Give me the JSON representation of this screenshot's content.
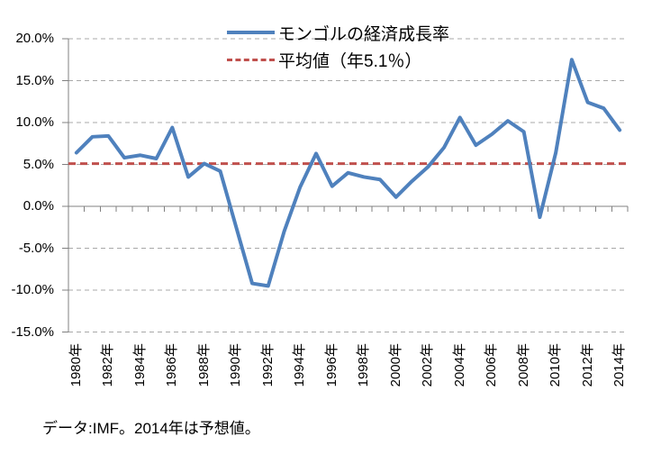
{
  "legend": {
    "items": [
      {
        "label": "モンゴルの経済成長率",
        "color": "#4F81BD",
        "style": "solid"
      },
      {
        "label": "平均値（年5.1％）",
        "color": "#C0504D",
        "style": "dashed"
      }
    ]
  },
  "footer": {
    "source_note": "データ:IMF。2014年は予想値。"
  },
  "chart_data": {
    "type": "line",
    "title": "",
    "xlabel": "",
    "ylabel": "",
    "x_categories": [
      "1980年",
      "1981年",
      "1982年",
      "1983年",
      "1984年",
      "1985年",
      "1986年",
      "1987年",
      "1988年",
      "1989年",
      "1990年",
      "1991年",
      "1992年",
      "1993年",
      "1994年",
      "1995年",
      "1996年",
      "1997年",
      "1998年",
      "1999年",
      "2000年",
      "2001年",
      "2002年",
      "2003年",
      "2004年",
      "2005年",
      "2006年",
      "2007年",
      "2008年",
      "2009年",
      "2010年",
      "2011年",
      "2012年",
      "2013年",
      "2014年"
    ],
    "x_label_every": 2,
    "series": [
      {
        "name": "モンゴルの経済成長率",
        "color": "#4F81BD",
        "line_style": "solid",
        "values": [
          6.4,
          8.3,
          8.4,
          5.8,
          6.1,
          5.7,
          9.4,
          3.5,
          5.1,
          4.2,
          -2.5,
          -9.2,
          -9.5,
          -3.0,
          2.3,
          6.3,
          2.4,
          4.0,
          3.5,
          3.2,
          1.1,
          3.0,
          4.7,
          7.0,
          10.6,
          7.3,
          8.6,
          10.2,
          8.9,
          -1.3,
          6.4,
          17.5,
          12.4,
          11.7,
          9.1
        ]
      },
      {
        "name": "平均値（年5.1％）",
        "color": "#C0504D",
        "line_style": "dashed",
        "constant_value": 5.1
      }
    ],
    "average_value": 5.1,
    "y_ticks": [
      {
        "value": 20,
        "label": "20.0%"
      },
      {
        "value": 15,
        "label": "15.0%"
      },
      {
        "value": 10,
        "label": "10.0%"
      },
      {
        "value": 5,
        "label": "5.0%"
      },
      {
        "value": 0,
        "label": "0.0%"
      },
      {
        "value": -5,
        "label": "-5.0%"
      },
      {
        "value": -10,
        "label": "-10.0%"
      },
      {
        "value": -15,
        "label": "-15.0%"
      }
    ],
    "ylim": [
      -15,
      20
    ],
    "grid": "horizontal-dashed",
    "legend_position": "top-center",
    "colors": {
      "grid": "#A8A8A8",
      "axis": "#808080",
      "text": "#000000"
    }
  }
}
